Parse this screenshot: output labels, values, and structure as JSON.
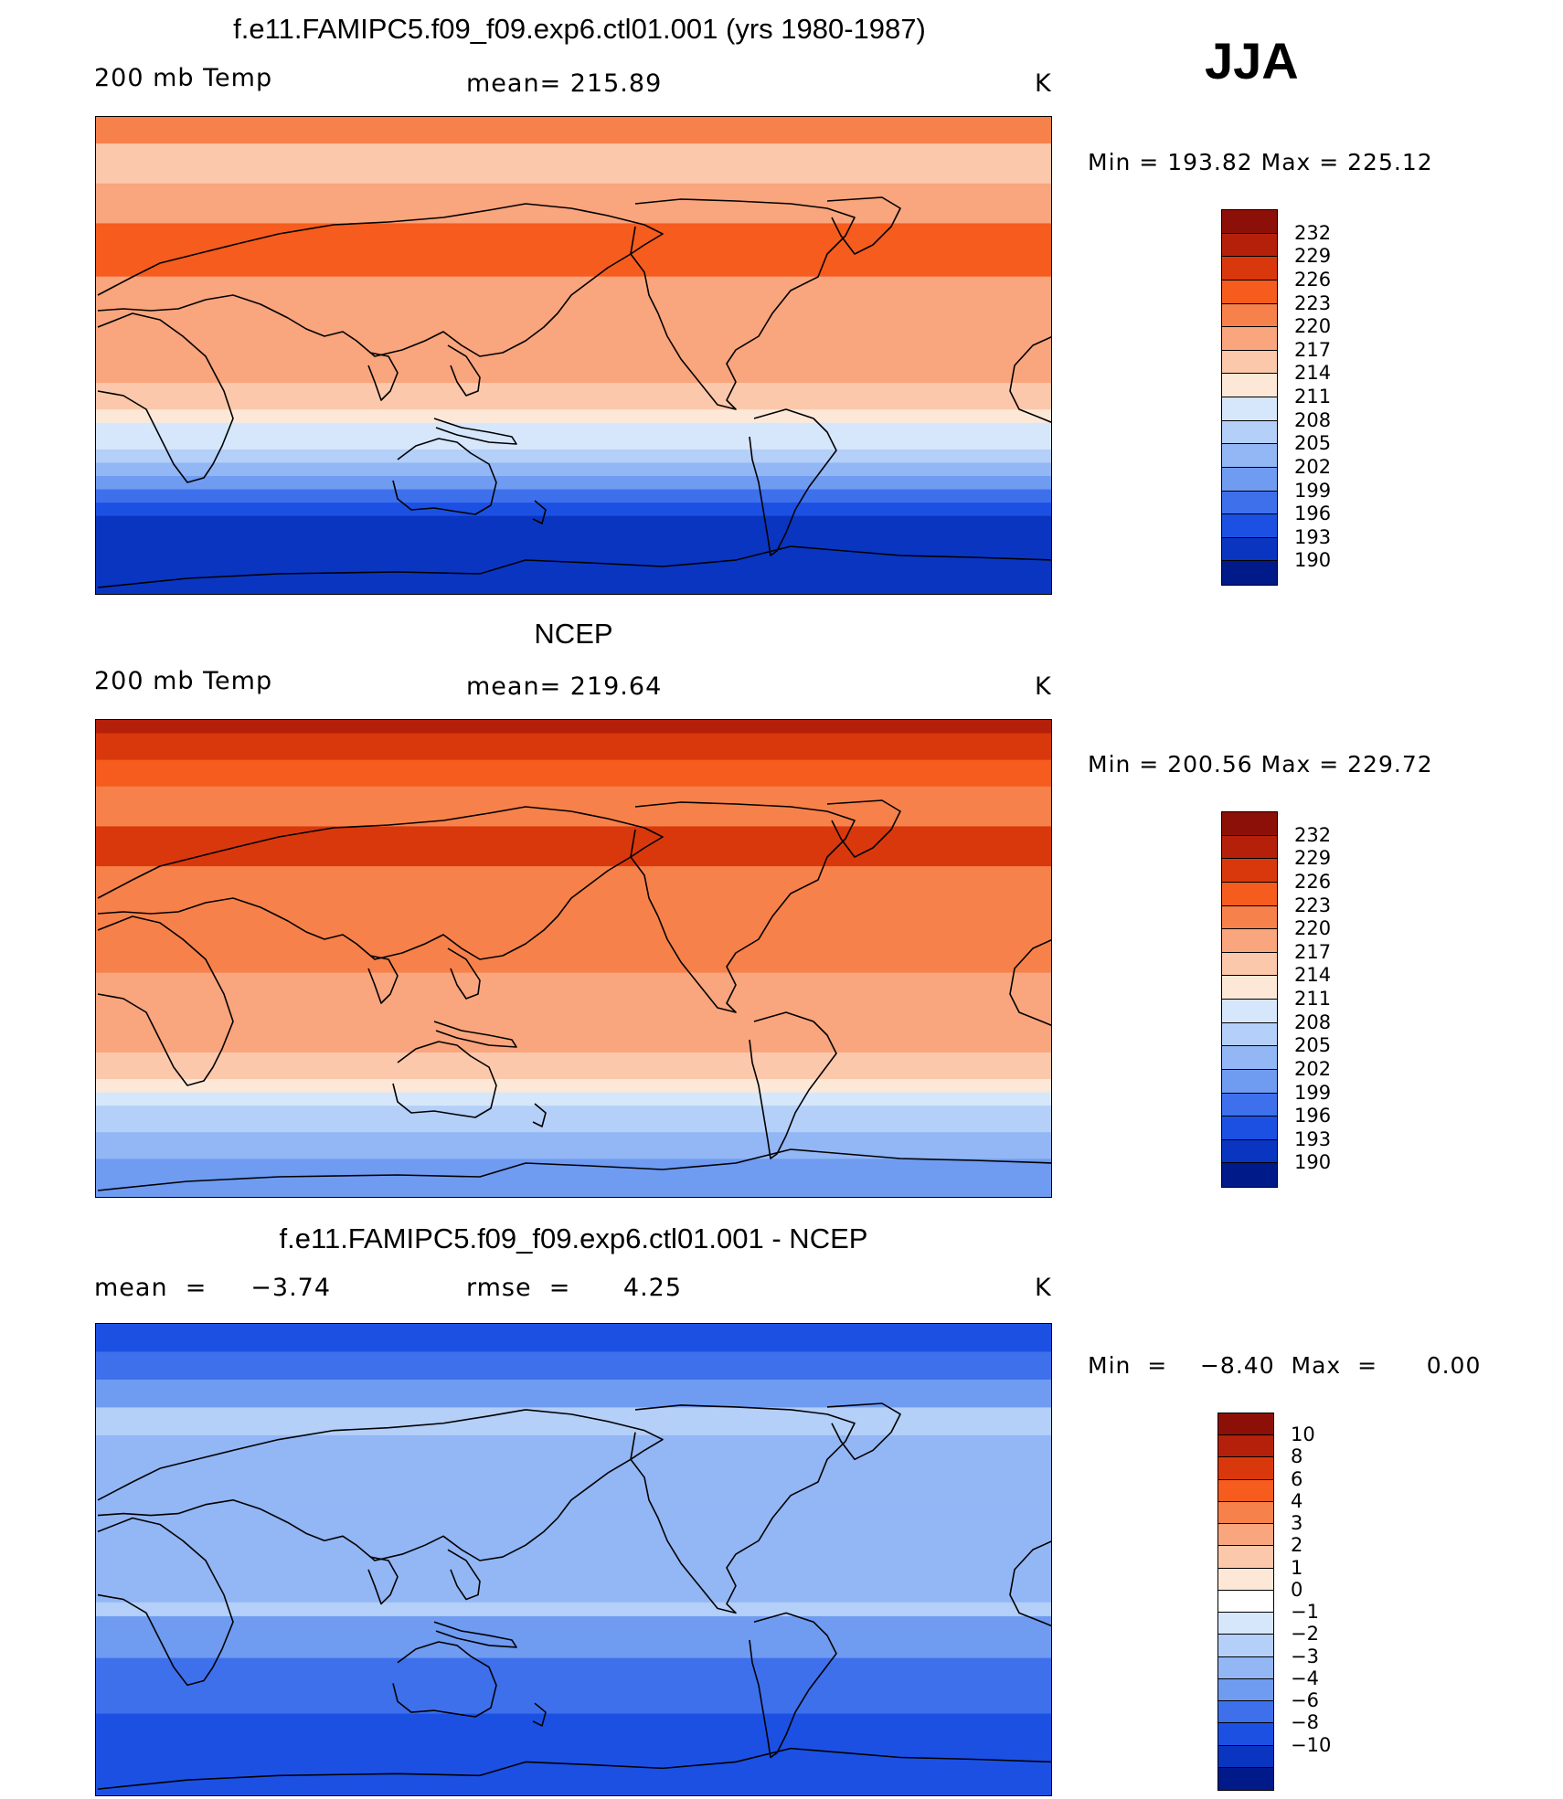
{
  "season": "JJA",
  "panels": [
    {
      "title": "f.e11.FAMIPC5.f09_f09.exp6.ctl01.001 (yrs 1980-1987)",
      "left_text": "200 mb Temp",
      "center_text": "mean=  215.89",
      "units": "K",
      "minmax": "Min  =  193.82  Max  =  225.12",
      "colorbar": {
        "labels": [
          "232",
          "229",
          "226",
          "223",
          "220",
          "217",
          "214",
          "211",
          "208",
          "205",
          "202",
          "199",
          "196",
          "193",
          "190"
        ],
        "colors": [
          "#8c1007",
          "#b5200a",
          "#d9380c",
          "#f55c1e",
          "#f7814a",
          "#f9a57d",
          "#fcc8ab",
          "#fde8d8",
          "#d6e7fb",
          "#b4cff8",
          "#93b6f5",
          "#6f9bf1",
          "#3e70ec",
          "#1c50e3",
          "#0a35c0",
          "#001a8a"
        ]
      },
      "map": {
        "band_colors": [
          "#f7814a",
          "#fcc8ab",
          "#f9a57d",
          "#f55c1e",
          "#f9a57d",
          "#f9a57d",
          "#fcc8ab",
          "#fde8d8",
          "#d6e7fb",
          "#b4cff8",
          "#93b6f5",
          "#6f9bf1",
          "#3e70ec",
          "#1c50e3",
          "#0a35c0"
        ],
        "band_weights": [
          2,
          3,
          3,
          4,
          4,
          4,
          2,
          1,
          2,
          1,
          1,
          1,
          1,
          1,
          6
        ]
      }
    },
    {
      "title": "NCEP",
      "left_text": "200 mb Temp",
      "center_text": "mean=  219.64",
      "units": "K",
      "minmax": "Min  =  200.56  Max  =  229.72",
      "colorbar": {
        "labels": [
          "232",
          "229",
          "226",
          "223",
          "220",
          "217",
          "214",
          "211",
          "208",
          "205",
          "202",
          "199",
          "196",
          "193",
          "190"
        ],
        "colors": [
          "#8c1007",
          "#b5200a",
          "#d9380c",
          "#f55c1e",
          "#f7814a",
          "#f9a57d",
          "#fcc8ab",
          "#fde8d8",
          "#d6e7fb",
          "#b4cff8",
          "#93b6f5",
          "#6f9bf1",
          "#3e70ec",
          "#1c50e3",
          "#0a35c0",
          "#001a8a"
        ]
      },
      "map": {
        "band_colors": [
          "#b5200a",
          "#d9380c",
          "#f55c1e",
          "#f7814a",
          "#d9380c",
          "#f7814a",
          "#f7814a",
          "#f9a57d",
          "#f9a57d",
          "#fcc8ab",
          "#fde8d8",
          "#d6e7fb",
          "#b4cff8",
          "#93b6f5",
          "#6f9bf1"
        ],
        "band_weights": [
          1,
          2,
          2,
          3,
          3,
          4,
          4,
          3,
          3,
          2,
          1,
          1,
          2,
          2,
          3
        ]
      }
    },
    {
      "title": "f.e11.FAMIPC5.f09_f09.exp6.ctl01.001 - NCEP",
      "left_text": "mean  =     −3.74",
      "center_text": "rmse  =      4.25",
      "units": "K",
      "minmax": "Min  =    −8.40  Max  =      0.00",
      "colorbar": {
        "labels": [
          "10",
          "8",
          "6",
          "4",
          "3",
          "2",
          "1",
          "0",
          "−1",
          "−2",
          "−3",
          "−4",
          "−6",
          "−8",
          "−10"
        ],
        "colors": [
          "#8c1007",
          "#b5200a",
          "#d9380c",
          "#f55c1e",
          "#f7814a",
          "#f9a57d",
          "#fcc8ab",
          "#fde8d8",
          "#ffffff",
          "#d6e7fb",
          "#b4cff8",
          "#93b6f5",
          "#6f9bf1",
          "#3e70ec",
          "#1c50e3",
          "#0a35c0",
          "#001a8a"
        ]
      },
      "map": {
        "band_colors": [
          "#1c50e3",
          "#3e70ec",
          "#6f9bf1",
          "#b4cff8",
          "#93b6f5",
          "#93b6f5",
          "#93b6f5",
          "#93b6f5",
          "#b4cff8",
          "#6f9bf1",
          "#3e70ec",
          "#3e70ec",
          "#1c50e3",
          "#1c50e3"
        ],
        "band_weights": [
          2,
          2,
          2,
          2,
          3,
          3,
          3,
          3,
          1,
          3,
          2,
          2,
          3,
          3
        ]
      }
    }
  ]
}
